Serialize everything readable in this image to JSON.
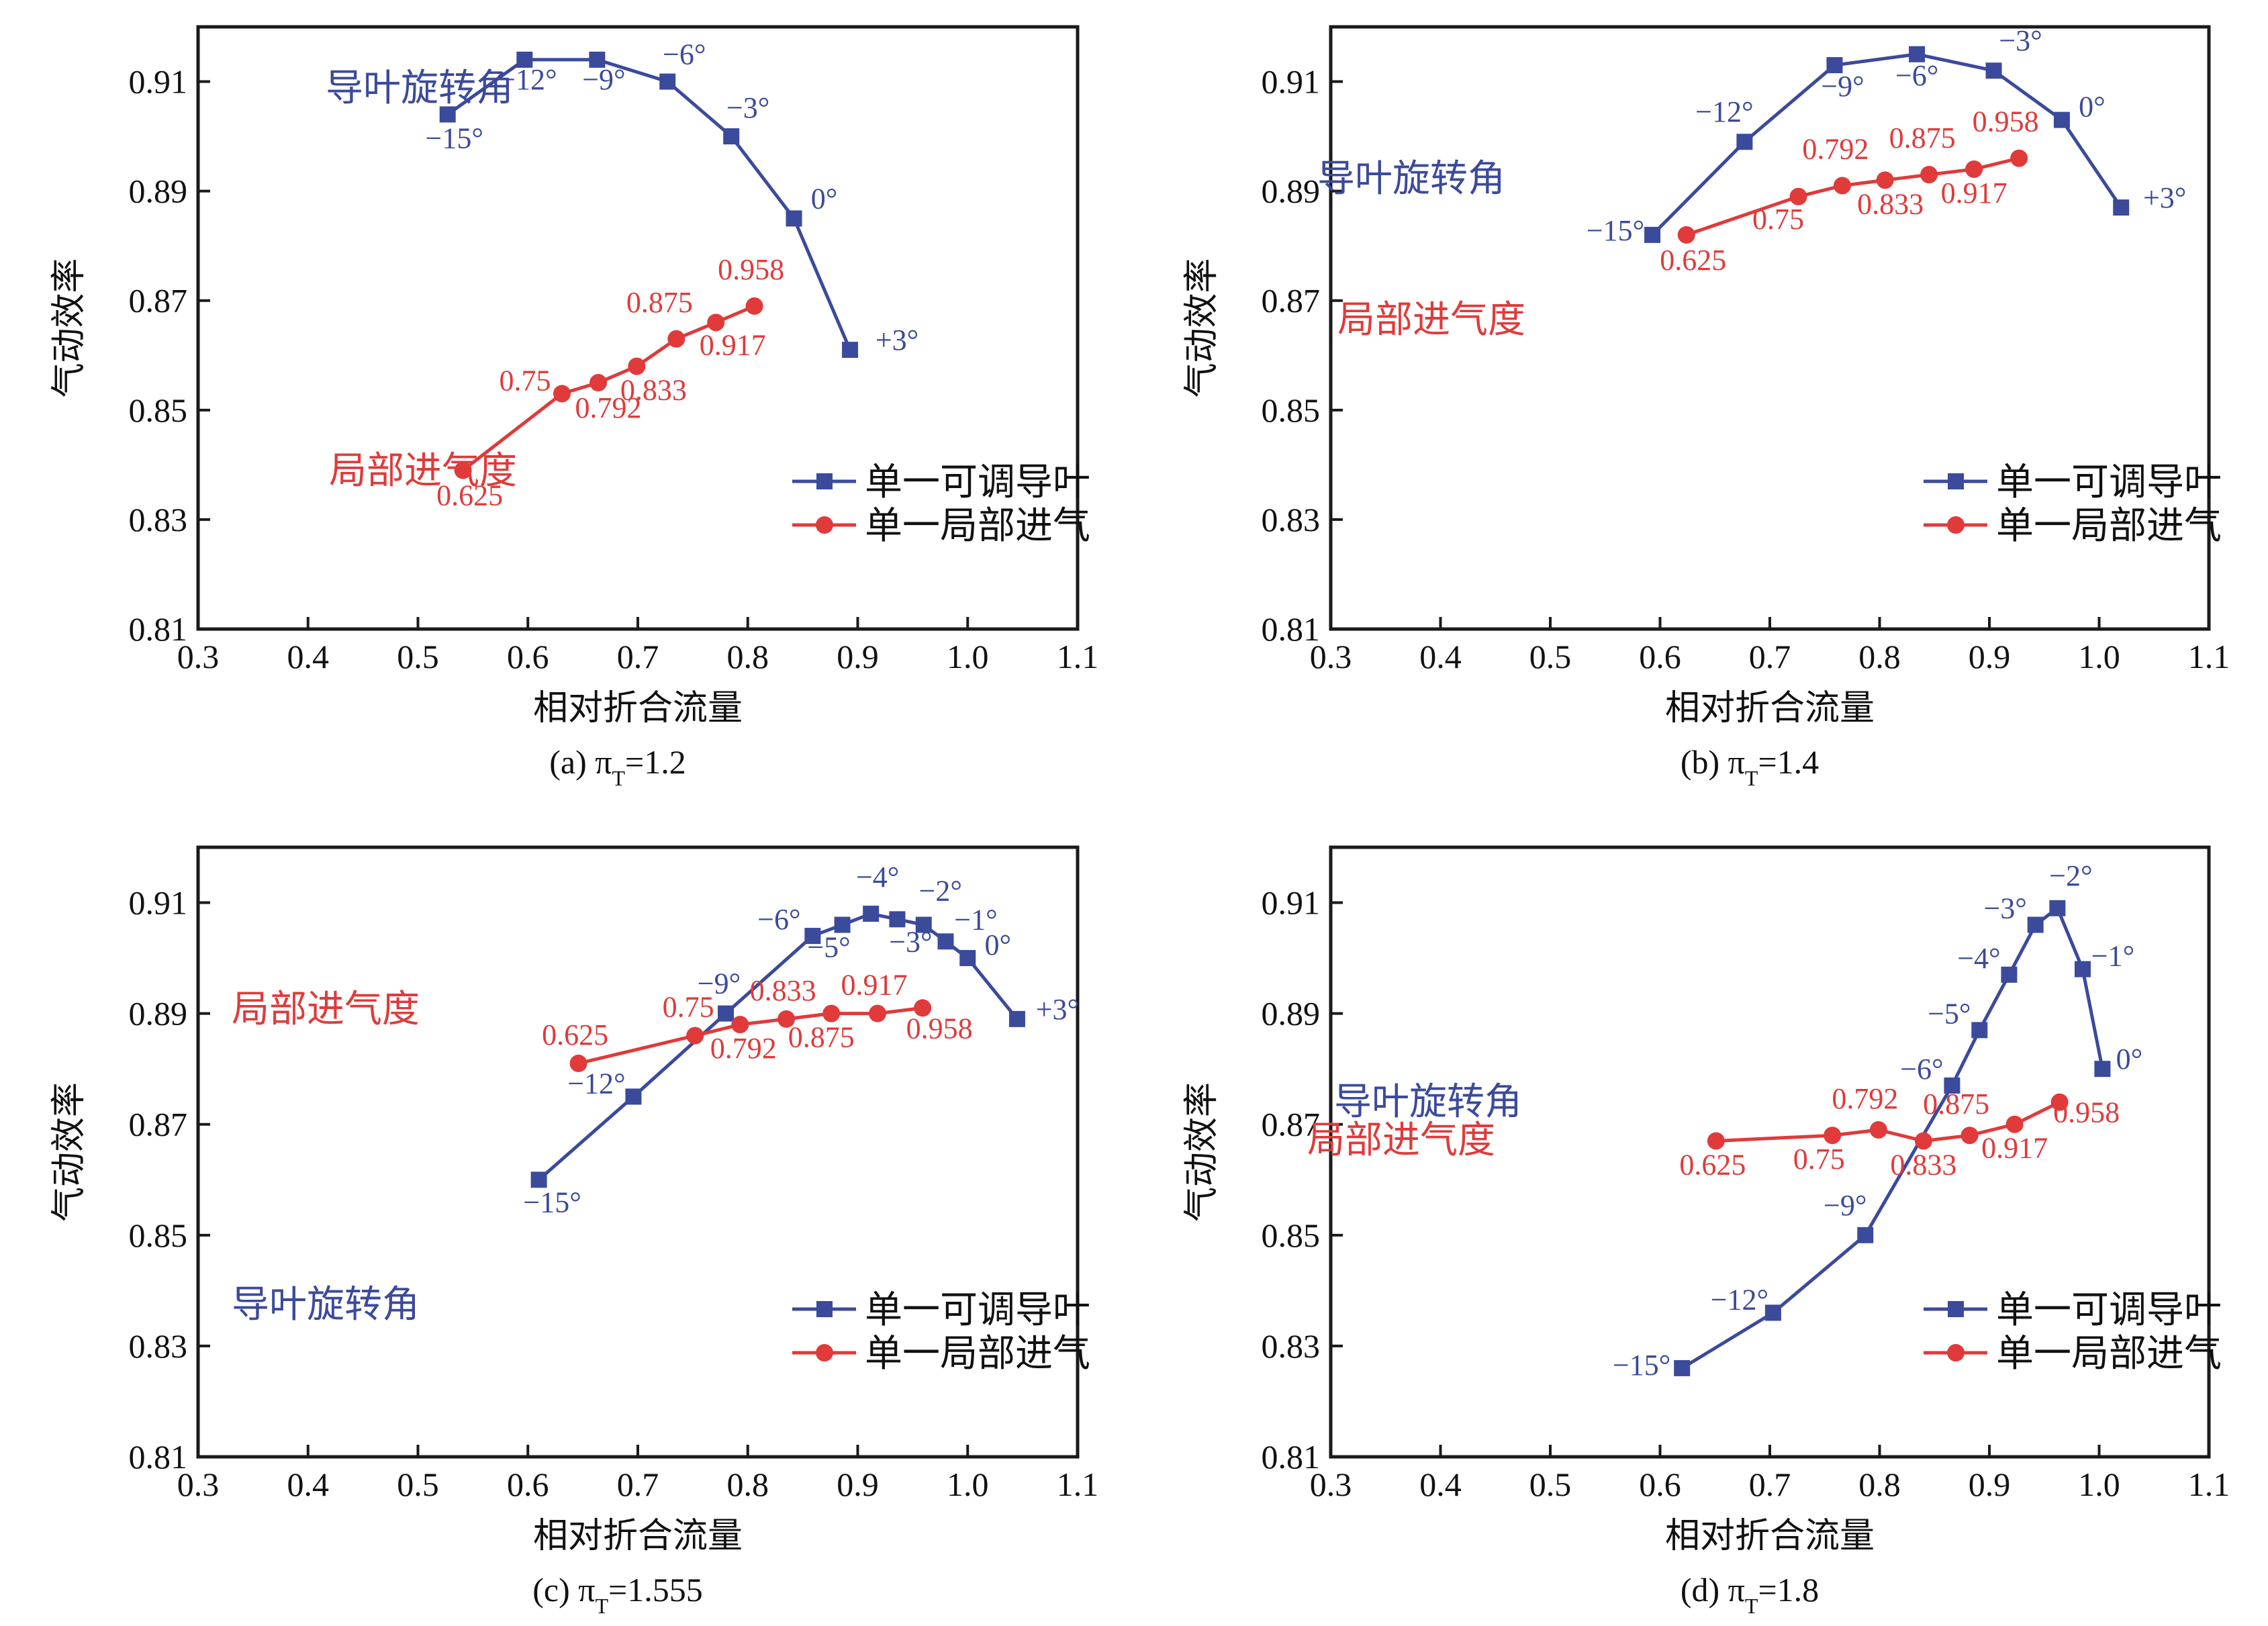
{
  "figure": {
    "colors": {
      "vane": "#3b4a9b",
      "partial": "#e03a3a",
      "axis": "#1a1a1a"
    },
    "legend": {
      "vane": "单一可调导叶",
      "partial": "单一局部进气"
    },
    "ylabel": "气动效率",
    "xlabel": "相对折合流量"
  },
  "chart_data": [
    {
      "type": "line",
      "caption_prefix": "(a) π",
      "caption_sub": "T",
      "caption_value": "=1.2",
      "xlabel": "相对折合流量",
      "ylabel": "气动效率",
      "xlim": [
        0.3,
        1.1
      ],
      "ylim": [
        0.81,
        0.92
      ],
      "xticks": [
        "0.3",
        "0.4",
        "0.5",
        "0.6",
        "0.7",
        "0.8",
        "0.9",
        "1.0",
        "1.1"
      ],
      "yticks": [
        "0.81",
        "0.83",
        "0.85",
        "0.87",
        "0.89",
        "0.91"
      ],
      "legend_position": "lower-right",
      "annotations": {
        "vane": "导叶旋转角",
        "partial": "局部进气度"
      },
      "series": [
        {
          "name": "单一可调导叶",
          "key": "vane",
          "marker": "square",
          "x": [
            0.527,
            0.597,
            0.663,
            0.727,
            0.785,
            0.842,
            0.893
          ],
          "y": [
            0.904,
            0.914,
            0.914,
            0.91,
            0.9,
            0.885,
            0.861
          ],
          "labels": [
            "−15°",
            "−12°",
            "−9°",
            "−6°",
            "−3°",
            "0°",
            "+3°"
          ]
        },
        {
          "name": "单一局部进气",
          "key": "partial",
          "marker": "circle",
          "x": [
            0.541,
            0.631,
            0.664,
            0.699,
            0.735,
            0.771,
            0.806
          ],
          "y": [
            0.839,
            0.853,
            0.855,
            0.858,
            0.863,
            0.866,
            0.869
          ],
          "labels": [
            "0.625",
            "0.75",
            "0.792",
            "0.833",
            "0.875",
            "0.917",
            "0.958"
          ]
        }
      ]
    },
    {
      "type": "line",
      "caption_prefix": "(b) π",
      "caption_sub": "T",
      "caption_value": "=1.4",
      "xlabel": "相对折合流量",
      "ylabel": "气动效率",
      "xlim": [
        0.3,
        1.1
      ],
      "ylim": [
        0.81,
        0.92
      ],
      "xticks": [
        "0.3",
        "0.4",
        "0.5",
        "0.6",
        "0.7",
        "0.8",
        "0.9",
        "1.0",
        "1.1"
      ],
      "yticks": [
        "0.81",
        "0.83",
        "0.85",
        "0.87",
        "0.89",
        "0.91"
      ],
      "legend_position": "lower-right",
      "annotations": {
        "vane": "导叶旋转角",
        "partial": "局部进气度"
      },
      "series": [
        {
          "name": "单一可调导叶",
          "key": "vane",
          "marker": "square",
          "x": [
            0.593,
            0.677,
            0.759,
            0.834,
            0.904,
            0.966,
            1.02
          ],
          "y": [
            0.882,
            0.899,
            0.913,
            0.915,
            0.912,
            0.903,
            0.887
          ],
          "labels": [
            "−15°",
            "−12°",
            "−9°",
            "−6°",
            "−3°",
            "0°",
            "+3°"
          ]
        },
        {
          "name": "单一局部进气",
          "key": "partial",
          "marker": "circle",
          "x": [
            0.624,
            0.726,
            0.766,
            0.805,
            0.845,
            0.886,
            0.927
          ],
          "y": [
            0.882,
            0.889,
            0.891,
            0.892,
            0.893,
            0.894,
            0.896
          ],
          "labels": [
            "0.625",
            "0.75",
            "0.792",
            "0.833",
            "0.875",
            "0.917",
            "0.958"
          ]
        }
      ]
    },
    {
      "type": "line",
      "caption_prefix": "(c) π",
      "caption_sub": "T",
      "caption_value": "=1.555",
      "xlabel": "相对折合流量",
      "ylabel": "气动效率",
      "xlim": [
        0.3,
        1.1
      ],
      "ylim": [
        0.81,
        0.92
      ],
      "xticks": [
        "0.3",
        "0.4",
        "0.5",
        "0.6",
        "0.7",
        "0.8",
        "0.9",
        "1.0",
        "1.1"
      ],
      "yticks": [
        "0.81",
        "0.83",
        "0.85",
        "0.87",
        "0.89",
        "0.91"
      ],
      "legend_position": "lower-right",
      "annotations": {
        "vane": "导叶旋转角",
        "partial": "局部进气度"
      },
      "series": [
        {
          "name": "单一可调导叶",
          "key": "vane",
          "marker": "square",
          "x": [
            0.61,
            0.696,
            0.78,
            0.859,
            0.886,
            0.912,
            0.936,
            0.96,
            0.98,
            1.0,
            1.045
          ],
          "y": [
            0.86,
            0.875,
            0.89,
            0.904,
            0.906,
            0.908,
            0.907,
            0.906,
            0.903,
            0.9,
            0.889
          ],
          "labels": [
            "−15°",
            "−12°",
            "−9°",
            "−6°",
            "−5°",
            "−4°",
            "−3°",
            "−2°",
            "−1°",
            "0°",
            "+3°"
          ]
        },
        {
          "name": "单一局部进气",
          "key": "partial",
          "marker": "circle",
          "x": [
            0.646,
            0.752,
            0.793,
            0.835,
            0.876,
            0.918,
            0.959
          ],
          "y": [
            0.881,
            0.886,
            0.888,
            0.889,
            0.89,
            0.89,
            0.891
          ],
          "labels": [
            "0.625",
            "0.75",
            "0.792",
            "0.833",
            "0.875",
            "0.917",
            "0.958"
          ]
        }
      ]
    },
    {
      "type": "line",
      "caption_prefix": "(d) π",
      "caption_sub": "T",
      "caption_value": "=1.8",
      "xlabel": "相对折合流量",
      "ylabel": "气动效率",
      "xlim": [
        0.3,
        1.1
      ],
      "ylim": [
        0.81,
        0.92
      ],
      "xticks": [
        "0.3",
        "0.4",
        "0.5",
        "0.6",
        "0.7",
        "0.8",
        "0.9",
        "1.0",
        "1.1"
      ],
      "yticks": [
        "0.81",
        "0.83",
        "0.85",
        "0.87",
        "0.89",
        "0.91"
      ],
      "legend_position": "lower-right",
      "annotations": {
        "vane": "导叶旋转角",
        "partial": "局部进气度"
      },
      "series": [
        {
          "name": "单一可调导叶",
          "key": "vane",
          "marker": "square",
          "x": [
            0.62,
            0.703,
            0.787,
            0.866,
            0.891,
            0.918,
            0.942,
            0.962,
            0.985,
            1.003
          ],
          "y": [
            0.826,
            0.836,
            0.85,
            0.877,
            0.887,
            0.897,
            0.906,
            0.909,
            0.898,
            0.88
          ],
          "labels": [
            "−15°",
            "−12°",
            "−9°",
            "−6°",
            "−5°",
            "−4°",
            "−3°",
            "−2°",
            "−1°",
            "0°"
          ]
        },
        {
          "name": "单一局部进气",
          "key": "partial",
          "marker": "circle",
          "x": [
            0.651,
            0.757,
            0.799,
            0.84,
            0.882,
            0.923,
            0.964
          ],
          "y": [
            0.867,
            0.868,
            0.869,
            0.867,
            0.868,
            0.87,
            0.874
          ],
          "labels": [
            "0.625",
            "0.75",
            "0.792",
            "0.833",
            "0.875",
            "0.917",
            "0.958"
          ]
        }
      ]
    }
  ]
}
